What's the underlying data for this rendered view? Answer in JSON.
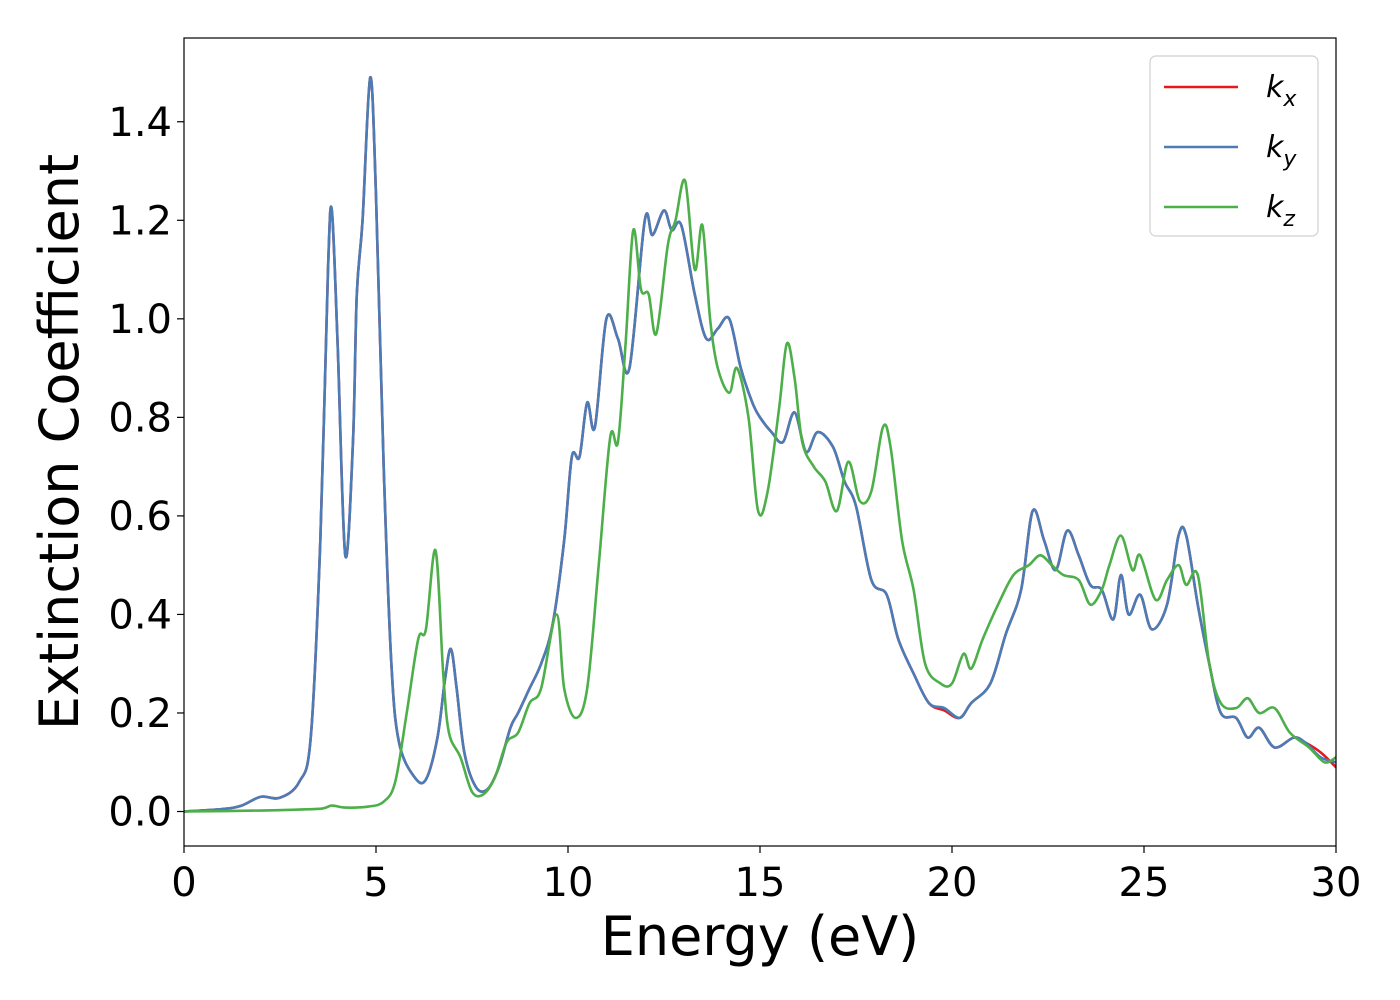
{
  "chart_data": {
    "type": "line",
    "title": "",
    "xlabel": "Energy (eV)",
    "ylabel": "Extinction Coefficient",
    "xlim": [
      0,
      30
    ],
    "ylim": [
      -0.07,
      1.57
    ],
    "xticks": [
      0,
      5,
      10,
      15,
      20,
      25,
      30
    ],
    "xtick_labels": [
      "0",
      "5",
      "10",
      "15",
      "20",
      "25",
      "30"
    ],
    "yticks": [
      0.0,
      0.2,
      0.4,
      0.6,
      0.8,
      1.0,
      1.2,
      1.4
    ],
    "ytick_labels": [
      "0.0",
      "0.2",
      "0.4",
      "0.6",
      "0.8",
      "1.0",
      "1.2",
      "1.4"
    ],
    "grid": false,
    "legend_position": "top-right",
    "series": [
      {
        "name": "k_x",
        "label_base": "k",
        "label_sub": "x",
        "color": "#e41a1c",
        "points": [
          [
            0,
            0
          ],
          [
            1,
            0.005
          ],
          [
            1.5,
            0.012
          ],
          [
            2.0,
            0.03
          ],
          [
            2.5,
            0.028
          ],
          [
            3.0,
            0.06
          ],
          [
            3.3,
            0.15
          ],
          [
            3.55,
            0.55
          ],
          [
            3.75,
            1.1
          ],
          [
            3.85,
            1.22
          ],
          [
            4.0,
            0.95
          ],
          [
            4.2,
            0.52
          ],
          [
            4.4,
            0.75
          ],
          [
            4.5,
            1.05
          ],
          [
            4.65,
            1.2
          ],
          [
            4.85,
            1.49
          ],
          [
            5.0,
            1.25
          ],
          [
            5.2,
            0.7
          ],
          [
            5.4,
            0.3
          ],
          [
            5.6,
            0.14
          ],
          [
            6.0,
            0.07
          ],
          [
            6.3,
            0.065
          ],
          [
            6.6,
            0.15
          ],
          [
            6.8,
            0.27
          ],
          [
            6.95,
            0.33
          ],
          [
            7.1,
            0.25
          ],
          [
            7.3,
            0.12
          ],
          [
            7.6,
            0.05
          ],
          [
            7.9,
            0.045
          ],
          [
            8.2,
            0.09
          ],
          [
            8.5,
            0.17
          ],
          [
            8.7,
            0.2
          ],
          [
            9.0,
            0.25
          ],
          [
            9.3,
            0.3
          ],
          [
            9.6,
            0.38
          ],
          [
            9.9,
            0.55
          ],
          [
            10.1,
            0.72
          ],
          [
            10.3,
            0.72
          ],
          [
            10.5,
            0.83
          ],
          [
            10.7,
            0.78
          ],
          [
            11.0,
            1.0
          ],
          [
            11.3,
            0.96
          ],
          [
            11.6,
            0.9
          ],
          [
            12.0,
            1.2
          ],
          [
            12.2,
            1.17
          ],
          [
            12.5,
            1.22
          ],
          [
            12.7,
            1.18
          ],
          [
            12.95,
            1.19
          ],
          [
            13.3,
            1.05
          ],
          [
            13.6,
            0.96
          ],
          [
            13.9,
            0.98
          ],
          [
            14.2,
            1.0
          ],
          [
            14.5,
            0.9
          ],
          [
            14.8,
            0.83
          ],
          [
            15.0,
            0.8
          ],
          [
            15.3,
            0.77
          ],
          [
            15.6,
            0.75
          ],
          [
            15.9,
            0.81
          ],
          [
            16.2,
            0.73
          ],
          [
            16.5,
            0.77
          ],
          [
            16.9,
            0.74
          ],
          [
            17.2,
            0.67
          ],
          [
            17.5,
            0.62
          ],
          [
            17.9,
            0.47
          ],
          [
            18.3,
            0.44
          ],
          [
            18.6,
            0.35
          ],
          [
            19.0,
            0.28
          ],
          [
            19.4,
            0.22
          ],
          [
            19.8,
            0.205
          ],
          [
            20.2,
            0.19
          ],
          [
            20.5,
            0.22
          ],
          [
            21.0,
            0.26
          ],
          [
            21.4,
            0.36
          ],
          [
            21.8,
            0.45
          ],
          [
            22.1,
            0.61
          ],
          [
            22.4,
            0.55
          ],
          [
            22.7,
            0.49
          ],
          [
            23.0,
            0.57
          ],
          [
            23.3,
            0.52
          ],
          [
            23.6,
            0.46
          ],
          [
            23.9,
            0.45
          ],
          [
            24.2,
            0.39
          ],
          [
            24.4,
            0.48
          ],
          [
            24.6,
            0.4
          ],
          [
            24.9,
            0.44
          ],
          [
            25.2,
            0.37
          ],
          [
            25.6,
            0.42
          ],
          [
            25.9,
            0.56
          ],
          [
            26.1,
            0.56
          ],
          [
            26.4,
            0.42
          ],
          [
            26.7,
            0.3
          ],
          [
            27.0,
            0.2
          ],
          [
            27.4,
            0.19
          ],
          [
            27.7,
            0.15
          ],
          [
            28.0,
            0.17
          ],
          [
            28.4,
            0.13
          ],
          [
            28.9,
            0.15
          ],
          [
            29.2,
            0.14
          ],
          [
            29.6,
            0.12
          ],
          [
            30,
            0.09
          ]
        ]
      },
      {
        "name": "k_y",
        "label_base": "k",
        "label_sub": "y",
        "color": "#4a7db8",
        "points": [
          [
            0,
            0
          ],
          [
            1,
            0.005
          ],
          [
            1.5,
            0.012
          ],
          [
            2.0,
            0.03
          ],
          [
            2.5,
            0.028
          ],
          [
            3.0,
            0.06
          ],
          [
            3.3,
            0.15
          ],
          [
            3.55,
            0.55
          ],
          [
            3.75,
            1.1
          ],
          [
            3.85,
            1.22
          ],
          [
            4.0,
            0.95
          ],
          [
            4.2,
            0.52
          ],
          [
            4.4,
            0.75
          ],
          [
            4.5,
            1.05
          ],
          [
            4.65,
            1.2
          ],
          [
            4.85,
            1.49
          ],
          [
            5.0,
            1.25
          ],
          [
            5.2,
            0.7
          ],
          [
            5.4,
            0.3
          ],
          [
            5.6,
            0.14
          ],
          [
            6.0,
            0.07
          ],
          [
            6.3,
            0.065
          ],
          [
            6.6,
            0.15
          ],
          [
            6.8,
            0.27
          ],
          [
            6.95,
            0.33
          ],
          [
            7.1,
            0.25
          ],
          [
            7.3,
            0.12
          ],
          [
            7.6,
            0.05
          ],
          [
            7.9,
            0.045
          ],
          [
            8.2,
            0.09
          ],
          [
            8.5,
            0.17
          ],
          [
            8.7,
            0.2
          ],
          [
            9.0,
            0.25
          ],
          [
            9.3,
            0.3
          ],
          [
            9.6,
            0.38
          ],
          [
            9.9,
            0.55
          ],
          [
            10.1,
            0.72
          ],
          [
            10.3,
            0.72
          ],
          [
            10.5,
            0.83
          ],
          [
            10.7,
            0.78
          ],
          [
            11.0,
            1.0
          ],
          [
            11.3,
            0.96
          ],
          [
            11.6,
            0.9
          ],
          [
            12.0,
            1.2
          ],
          [
            12.2,
            1.17
          ],
          [
            12.5,
            1.22
          ],
          [
            12.7,
            1.18
          ],
          [
            12.95,
            1.19
          ],
          [
            13.3,
            1.05
          ],
          [
            13.6,
            0.96
          ],
          [
            13.9,
            0.98
          ],
          [
            14.2,
            1.0
          ],
          [
            14.5,
            0.9
          ],
          [
            14.8,
            0.83
          ],
          [
            15.0,
            0.8
          ],
          [
            15.3,
            0.77
          ],
          [
            15.6,
            0.75
          ],
          [
            15.9,
            0.81
          ],
          [
            16.2,
            0.73
          ],
          [
            16.5,
            0.77
          ],
          [
            16.9,
            0.74
          ],
          [
            17.2,
            0.67
          ],
          [
            17.5,
            0.62
          ],
          [
            17.9,
            0.47
          ],
          [
            18.3,
            0.44
          ],
          [
            18.6,
            0.35
          ],
          [
            19.0,
            0.28
          ],
          [
            19.4,
            0.22
          ],
          [
            19.8,
            0.21
          ],
          [
            20.2,
            0.19
          ],
          [
            20.5,
            0.22
          ],
          [
            21.0,
            0.26
          ],
          [
            21.4,
            0.36
          ],
          [
            21.8,
            0.45
          ],
          [
            22.1,
            0.61
          ],
          [
            22.4,
            0.55
          ],
          [
            22.7,
            0.49
          ],
          [
            23.0,
            0.57
          ],
          [
            23.3,
            0.52
          ],
          [
            23.6,
            0.46
          ],
          [
            23.9,
            0.45
          ],
          [
            24.2,
            0.39
          ],
          [
            24.4,
            0.48
          ],
          [
            24.6,
            0.4
          ],
          [
            24.9,
            0.44
          ],
          [
            25.2,
            0.37
          ],
          [
            25.6,
            0.42
          ],
          [
            25.9,
            0.56
          ],
          [
            26.1,
            0.56
          ],
          [
            26.4,
            0.42
          ],
          [
            26.7,
            0.3
          ],
          [
            27.0,
            0.2
          ],
          [
            27.4,
            0.19
          ],
          [
            27.7,
            0.15
          ],
          [
            28.0,
            0.17
          ],
          [
            28.4,
            0.13
          ],
          [
            28.9,
            0.15
          ],
          [
            29.2,
            0.14
          ],
          [
            29.6,
            0.11
          ],
          [
            30,
            0.1
          ]
        ]
      },
      {
        "name": "k_z",
        "label_base": "k",
        "label_sub": "z",
        "color": "#4daf4a",
        "points": [
          [
            0,
            0
          ],
          [
            2.0,
            0.002
          ],
          [
            3.0,
            0.004
          ],
          [
            3.6,
            0.006
          ],
          [
            3.85,
            0.012
          ],
          [
            4.2,
            0.008
          ],
          [
            4.8,
            0.01
          ],
          [
            5.2,
            0.02
          ],
          [
            5.5,
            0.06
          ],
          [
            5.8,
            0.2
          ],
          [
            6.1,
            0.35
          ],
          [
            6.3,
            0.37
          ],
          [
            6.55,
            0.53
          ],
          [
            6.75,
            0.28
          ],
          [
            6.9,
            0.16
          ],
          [
            7.2,
            0.11
          ],
          [
            7.5,
            0.04
          ],
          [
            7.8,
            0.035
          ],
          [
            8.1,
            0.07
          ],
          [
            8.4,
            0.14
          ],
          [
            8.7,
            0.16
          ],
          [
            9.0,
            0.22
          ],
          [
            9.3,
            0.25
          ],
          [
            9.7,
            0.4
          ],
          [
            9.9,
            0.25
          ],
          [
            10.2,
            0.19
          ],
          [
            10.5,
            0.25
          ],
          [
            10.8,
            0.5
          ],
          [
            11.1,
            0.76
          ],
          [
            11.3,
            0.75
          ],
          [
            11.5,
            0.95
          ],
          [
            11.7,
            1.18
          ],
          [
            11.9,
            1.06
          ],
          [
            12.1,
            1.05
          ],
          [
            12.3,
            0.97
          ],
          [
            12.6,
            1.15
          ],
          [
            12.8,
            1.2
          ],
          [
            13.05,
            1.28
          ],
          [
            13.3,
            1.1
          ],
          [
            13.5,
            1.19
          ],
          [
            13.7,
            1.0
          ],
          [
            13.9,
            0.9
          ],
          [
            14.2,
            0.85
          ],
          [
            14.4,
            0.9
          ],
          [
            14.7,
            0.8
          ],
          [
            14.95,
            0.61
          ],
          [
            15.2,
            0.65
          ],
          [
            15.5,
            0.82
          ],
          [
            15.7,
            0.95
          ],
          [
            15.9,
            0.88
          ],
          [
            16.1,
            0.75
          ],
          [
            16.4,
            0.7
          ],
          [
            16.7,
            0.67
          ],
          [
            17.0,
            0.61
          ],
          [
            17.3,
            0.71
          ],
          [
            17.6,
            0.63
          ],
          [
            17.9,
            0.65
          ],
          [
            18.2,
            0.78
          ],
          [
            18.4,
            0.74
          ],
          [
            18.7,
            0.55
          ],
          [
            19.0,
            0.45
          ],
          [
            19.3,
            0.3
          ],
          [
            19.7,
            0.26
          ],
          [
            20.0,
            0.26
          ],
          [
            20.3,
            0.32
          ],
          [
            20.5,
            0.29
          ],
          [
            20.8,
            0.35
          ],
          [
            21.2,
            0.42
          ],
          [
            21.6,
            0.48
          ],
          [
            22.0,
            0.5
          ],
          [
            22.3,
            0.52
          ],
          [
            22.6,
            0.5
          ],
          [
            22.9,
            0.48
          ],
          [
            23.3,
            0.47
          ],
          [
            23.6,
            0.42
          ],
          [
            23.9,
            0.45
          ],
          [
            24.1,
            0.5
          ],
          [
            24.4,
            0.56
          ],
          [
            24.7,
            0.49
          ],
          [
            24.9,
            0.52
          ],
          [
            25.3,
            0.43
          ],
          [
            25.6,
            0.47
          ],
          [
            25.9,
            0.5
          ],
          [
            26.1,
            0.46
          ],
          [
            26.4,
            0.48
          ],
          [
            26.7,
            0.3
          ],
          [
            27.0,
            0.22
          ],
          [
            27.4,
            0.21
          ],
          [
            27.7,
            0.23
          ],
          [
            28.0,
            0.2
          ],
          [
            28.4,
            0.21
          ],
          [
            28.8,
            0.16
          ],
          [
            29.3,
            0.13
          ],
          [
            29.7,
            0.1
          ],
          [
            30,
            0.11
          ]
        ]
      }
    ]
  }
}
